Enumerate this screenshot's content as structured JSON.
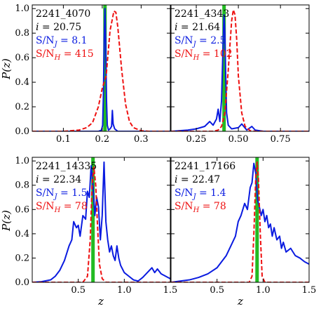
{
  "figure": {
    "ylabel": "P(z)",
    "xlabel": "z"
  },
  "colors": {
    "blue": "#0a1be0",
    "red": "#ee1111",
    "green": "#22bb22"
  },
  "chart_data": [
    {
      "type": "line",
      "id": "2241_4070",
      "annotations": {
        "id": "2241_4070",
        "mag": "i = 20.75",
        "snj": "S/N_J = 8.1",
        "snh": "S/N_H = 415"
      },
      "xlim": [
        0.02,
        0.375
      ],
      "ylim": [
        0,
        1.03
      ],
      "xticks": [
        0.1,
        0.2,
        0.3
      ],
      "xticklabels": [
        "0.1",
        "0.2",
        "0.3"
      ],
      "yticks": [
        0.0,
        0.2,
        0.4,
        0.6,
        0.8,
        1.0
      ],
      "yticklabels": [
        "0.0",
        "0.2",
        "0.4",
        "0.6",
        "0.8",
        "1.0"
      ],
      "z_spec": 0.207,
      "series": [
        {
          "color_key": "blue",
          "dashed": false,
          "points": [
            [
              0.02,
              0
            ],
            [
              0.19,
              0
            ],
            [
              0.198,
              0.01
            ],
            [
              0.201,
              0.05
            ],
            [
              0.203,
              0.3
            ],
            [
              0.205,
              0.75
            ],
            [
              0.207,
              1.0
            ],
            [
              0.209,
              0.7
            ],
            [
              0.211,
              0.25
            ],
            [
              0.213,
              0.05
            ],
            [
              0.216,
              0.01
            ],
            [
              0.22,
              0.02
            ],
            [
              0.224,
              0.04
            ],
            [
              0.226,
              0.17
            ],
            [
              0.228,
              0.06
            ],
            [
              0.232,
              0.02
            ],
            [
              0.24,
              0
            ],
            [
              0.375,
              0
            ]
          ]
        },
        {
          "color_key": "red",
          "dashed": true,
          "points": [
            [
              0.02,
              0
            ],
            [
              0.1,
              0
            ],
            [
              0.14,
              0.01
            ],
            [
              0.16,
              0.03
            ],
            [
              0.175,
              0.07
            ],
            [
              0.19,
              0.2
            ],
            [
              0.2,
              0.35
            ],
            [
              0.21,
              0.45
            ],
            [
              0.22,
              0.82
            ],
            [
              0.23,
              0.98
            ],
            [
              0.235,
              0.97
            ],
            [
              0.24,
              0.85
            ],
            [
              0.25,
              0.5
            ],
            [
              0.26,
              0.22
            ],
            [
              0.27,
              0.08
            ],
            [
              0.28,
              0.03
            ],
            [
              0.3,
              0.005
            ],
            [
              0.32,
              0
            ],
            [
              0.375,
              0
            ]
          ]
        }
      ]
    },
    {
      "type": "line",
      "id": "2241_4343",
      "annotations": {
        "id": "2241_4343",
        "mag": "i = 21.64",
        "snj": "S/N_J = 2.5",
        "snh": "S/N_H = 102"
      },
      "xlim": [
        0.1,
        0.92
      ],
      "ylim": [
        0,
        1.03
      ],
      "xticks": [
        0.25,
        0.5,
        0.75
      ],
      "xticklabels": [
        "0.25",
        "0.50",
        "0.75"
      ],
      "yticks": [
        0.0,
        0.2,
        0.4,
        0.6,
        0.8,
        1.0
      ],
      "yticklabels": [],
      "z_spec": 0.415,
      "series": [
        {
          "color_key": "blue",
          "dashed": false,
          "points": [
            [
              0.1,
              0
            ],
            [
              0.15,
              0.005
            ],
            [
              0.2,
              0.01
            ],
            [
              0.25,
              0.02
            ],
            [
              0.3,
              0.04
            ],
            [
              0.33,
              0.08
            ],
            [
              0.35,
              0.05
            ],
            [
              0.37,
              0.1
            ],
            [
              0.38,
              0.18
            ],
            [
              0.39,
              0.08
            ],
            [
              0.4,
              0.25
            ],
            [
              0.41,
              0.75
            ],
            [
              0.415,
              0.95
            ],
            [
              0.42,
              0.8
            ],
            [
              0.425,
              0.45
            ],
            [
              0.43,
              0.15
            ],
            [
              0.44,
              0.05
            ],
            [
              0.46,
              0.02
            ],
            [
              0.5,
              0.03
            ],
            [
              0.52,
              0.06
            ],
            [
              0.55,
              0.01
            ],
            [
              0.58,
              0.04
            ],
            [
              0.6,
              0.01
            ],
            [
              0.65,
              0
            ],
            [
              0.92,
              0
            ]
          ]
        },
        {
          "color_key": "red",
          "dashed": true,
          "points": [
            [
              0.1,
              0
            ],
            [
              0.35,
              0
            ],
            [
              0.38,
              0.01
            ],
            [
              0.4,
              0.04
            ],
            [
              0.42,
              0.15
            ],
            [
              0.44,
              0.5
            ],
            [
              0.46,
              0.9
            ],
            [
              0.47,
              0.99
            ],
            [
              0.48,
              0.95
            ],
            [
              0.49,
              0.75
            ],
            [
              0.5,
              0.45
            ],
            [
              0.52,
              0.15
            ],
            [
              0.54,
              0.04
            ],
            [
              0.57,
              0.005
            ],
            [
              0.6,
              0
            ],
            [
              0.92,
              0
            ]
          ]
        }
      ]
    },
    {
      "type": "line",
      "id": "2241_14335",
      "annotations": {
        "id": "2241_14335",
        "mag": "i = 22.34",
        "snj": "S/N_J = 1.5",
        "snh": "S/N_H = 78"
      },
      "xlim": [
        0.0,
        1.5
      ],
      "ylim": [
        0,
        1.03
      ],
      "xticks": [
        0.5,
        1.0,
        1.5
      ],
      "xticklabels": [
        "0.5",
        "1.0",
        "1.5"
      ],
      "yticks": [
        0.0,
        0.2,
        0.4,
        0.6,
        0.8,
        1.0
      ],
      "yticklabels": [
        "0.0",
        "0.2",
        "0.4",
        "0.6",
        "0.8",
        "1.0"
      ],
      "z_spec": 0.66,
      "series": [
        {
          "color_key": "blue",
          "dashed": false,
          "points": [
            [
              0.0,
              0
            ],
            [
              0.1,
              0.005
            ],
            [
              0.2,
              0.02
            ],
            [
              0.25,
              0.05
            ],
            [
              0.3,
              0.1
            ],
            [
              0.35,
              0.18
            ],
            [
              0.4,
              0.3
            ],
            [
              0.43,
              0.35
            ],
            [
              0.45,
              0.5
            ],
            [
              0.48,
              0.45
            ],
            [
              0.5,
              0.47
            ],
            [
              0.52,
              0.38
            ],
            [
              0.55,
              0.55
            ],
            [
              0.58,
              0.52
            ],
            [
              0.6,
              0.75
            ],
            [
              0.62,
              0.7
            ],
            [
              0.64,
              0.96
            ],
            [
              0.66,
              0.8
            ],
            [
              0.68,
              0.55
            ],
            [
              0.7,
              0.7
            ],
            [
              0.72,
              0.62
            ],
            [
              0.74,
              0.35
            ],
            [
              0.76,
              0.55
            ],
            [
              0.78,
              0.99
            ],
            [
              0.8,
              0.5
            ],
            [
              0.82,
              0.35
            ],
            [
              0.84,
              0.25
            ],
            [
              0.86,
              0.3
            ],
            [
              0.88,
              0.22
            ],
            [
              0.9,
              0.18
            ],
            [
              0.92,
              0.3
            ],
            [
              0.94,
              0.2
            ],
            [
              0.96,
              0.14
            ],
            [
              1.0,
              0.08
            ],
            [
              1.05,
              0.05
            ],
            [
              1.1,
              0.02
            ],
            [
              1.15,
              0.01
            ],
            [
              1.2,
              0.04
            ],
            [
              1.25,
              0.08
            ],
            [
              1.3,
              0.12
            ],
            [
              1.33,
              0.08
            ],
            [
              1.36,
              0.11
            ],
            [
              1.4,
              0.07
            ],
            [
              1.45,
              0.05
            ],
            [
              1.5,
              0.03
            ]
          ]
        },
        {
          "color_key": "red",
          "dashed": true,
          "points": [
            [
              0.0,
              0
            ],
            [
              0.55,
              0
            ],
            [
              0.6,
              0.05
            ],
            [
              0.63,
              0.35
            ],
            [
              0.65,
              0.8
            ],
            [
              0.67,
              0.95
            ],
            [
              0.69,
              0.8
            ],
            [
              0.71,
              0.45
            ],
            [
              0.73,
              0.15
            ],
            [
              0.76,
              0.03
            ],
            [
              0.8,
              0
            ],
            [
              1.5,
              0
            ]
          ]
        }
      ]
    },
    {
      "type": "line",
      "id": "2241_17166",
      "annotations": {
        "id": "2241_17166",
        "mag": "i = 22.47",
        "snj": "S/N_J = 1.4",
        "snh": "S/N_H = 78"
      },
      "xlim": [
        0.0,
        1.5
      ],
      "ylim": [
        0,
        1.03
      ],
      "xticks": [
        0.5,
        1.0,
        1.5
      ],
      "xticklabels": [
        "0.5",
        "1.0",
        "1.5"
      ],
      "yticks": [
        0.0,
        0.2,
        0.4,
        0.6,
        0.8,
        1.0
      ],
      "yticklabels": [],
      "z_spec": 0.935,
      "series": [
        {
          "color_key": "blue",
          "dashed": false,
          "points": [
            [
              0.0,
              0
            ],
            [
              0.1,
              0.01
            ],
            [
              0.2,
              0.02
            ],
            [
              0.3,
              0.04
            ],
            [
              0.4,
              0.07
            ],
            [
              0.5,
              0.12
            ],
            [
              0.55,
              0.17
            ],
            [
              0.6,
              0.22
            ],
            [
              0.65,
              0.3
            ],
            [
              0.7,
              0.38
            ],
            [
              0.73,
              0.5
            ],
            [
              0.76,
              0.55
            ],
            [
              0.8,
              0.65
            ],
            [
              0.83,
              0.6
            ],
            [
              0.86,
              0.78
            ],
            [
              0.88,
              0.82
            ],
            [
              0.9,
              0.98
            ],
            [
              0.92,
              0.9
            ],
            [
              0.94,
              0.68
            ],
            [
              0.96,
              0.62
            ],
            [
              0.98,
              0.55
            ],
            [
              1.0,
              0.6
            ],
            [
              1.02,
              0.5
            ],
            [
              1.04,
              0.55
            ],
            [
              1.06,
              0.45
            ],
            [
              1.08,
              0.48
            ],
            [
              1.1,
              0.38
            ],
            [
              1.12,
              0.45
            ],
            [
              1.15,
              0.35
            ],
            [
              1.18,
              0.38
            ],
            [
              1.2,
              0.28
            ],
            [
              1.22,
              0.33
            ],
            [
              1.25,
              0.25
            ],
            [
              1.3,
              0.28
            ],
            [
              1.35,
              0.22
            ],
            [
              1.4,
              0.2
            ],
            [
              1.45,
              0.17
            ],
            [
              1.5,
              0.15
            ]
          ]
        },
        {
          "color_key": "red",
          "dashed": true,
          "points": [
            [
              0.0,
              0
            ],
            [
              0.85,
              0
            ],
            [
              0.88,
              0.05
            ],
            [
              0.9,
              0.4
            ],
            [
              0.92,
              0.85
            ],
            [
              0.935,
              0.99
            ],
            [
              0.95,
              0.85
            ],
            [
              0.97,
              0.4
            ],
            [
              0.99,
              0.05
            ],
            [
              1.02,
              0
            ],
            [
              1.5,
              0
            ]
          ]
        }
      ]
    }
  ]
}
